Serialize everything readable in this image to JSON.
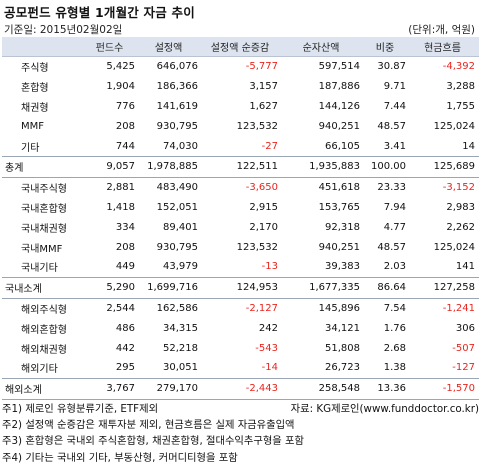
{
  "title": "공모펀드 유형별 1개월간 자금 추이",
  "base_date": "기준일: 2015년02월02일",
  "unit": "(단위:개, 억원)",
  "columns": [
    "",
    "펀드수",
    "설정액",
    "설정액 순증감",
    "순자산액",
    "비중",
    "현금흐름"
  ],
  "rows": [
    {
      "label": "주식형",
      "kind": "sub",
      "cells": [
        "5,425",
        "646,076",
        "-5,777",
        "597,514",
        "30.87",
        "-4,392"
      ]
    },
    {
      "label": "혼합형",
      "kind": "sub",
      "cells": [
        "1,904",
        "186,366",
        "3,157",
        "187,886",
        "9.71",
        "3,288"
      ]
    },
    {
      "label": "채권형",
      "kind": "sub",
      "cells": [
        "776",
        "141,619",
        "1,627",
        "144,126",
        "7.44",
        "1,755"
      ]
    },
    {
      "label": "MMF",
      "kind": "sub",
      "cells": [
        "208",
        "930,795",
        "123,532",
        "940,251",
        "48.57",
        "125,024"
      ]
    },
    {
      "label": "기타",
      "kind": "sub",
      "cells": [
        "744",
        "74,030",
        "-27",
        "66,105",
        "3.41",
        "14"
      ]
    },
    {
      "label": "총계",
      "kind": "total",
      "cells": [
        "9,057",
        "1,978,885",
        "122,511",
        "1,935,883",
        "100.00",
        "125,689"
      ]
    },
    {
      "label": "국내주식형",
      "kind": "sub",
      "cells": [
        "2,881",
        "483,490",
        "-3,650",
        "451,618",
        "23.33",
        "-3,152"
      ]
    },
    {
      "label": "국내혼합형",
      "kind": "sub",
      "cells": [
        "1,418",
        "152,051",
        "2,915",
        "153,765",
        "7.94",
        "2,983"
      ]
    },
    {
      "label": "국내채권형",
      "kind": "sub",
      "cells": [
        "334",
        "89,401",
        "2,170",
        "92,318",
        "4.77",
        "2,262"
      ]
    },
    {
      "label": "국내MMF",
      "kind": "sub",
      "cells": [
        "208",
        "930,795",
        "123,532",
        "940,251",
        "48.57",
        "125,024"
      ]
    },
    {
      "label": "국내기타",
      "kind": "sub",
      "cells": [
        "449",
        "43,979",
        "-13",
        "39,383",
        "2.03",
        "141"
      ]
    },
    {
      "label": "국내소계",
      "kind": "total",
      "cells": [
        "5,290",
        "1,699,716",
        "124,953",
        "1,677,335",
        "86.64",
        "127,258"
      ]
    },
    {
      "label": "해외주식형",
      "kind": "sub",
      "cells": [
        "2,544",
        "162,586",
        "-2,127",
        "145,896",
        "7.54",
        "-1,241"
      ]
    },
    {
      "label": "해외혼합형",
      "kind": "sub",
      "cells": [
        "486",
        "34,315",
        "242",
        "34,121",
        "1.76",
        "306"
      ]
    },
    {
      "label": "해외채권형",
      "kind": "sub",
      "cells": [
        "442",
        "52,218",
        "-543",
        "51,808",
        "2.68",
        "-507"
      ]
    },
    {
      "label": "해외기타",
      "kind": "sub",
      "cells": [
        "295",
        "30,051",
        "-14",
        "26,723",
        "1.38",
        "-127"
      ]
    },
    {
      "label": "해외소계",
      "kind": "total",
      "cells": [
        "3,767",
        "279,170",
        "-2,443",
        "258,548",
        "13.36",
        "-1,570"
      ]
    }
  ],
  "notes": [
    "주1) 제로인 유형분류기준, ETF제외",
    "주2) 설정액 순증감은 재투자분 제외, 현금흐름은 실제 자금유출입액",
    "주3) 혼합형은 국내외 주식혼합형, 채권혼합형, 절대수익추구형을 포함",
    "주4) 기타는 국내외 기타, 부동산형, 커머디티형을 포함"
  ],
  "source": "자료: KG제로인(www.funddoctor.co.kr)",
  "colors": {
    "header_bg": "#dde4ef",
    "negative": "#e8261f"
  }
}
